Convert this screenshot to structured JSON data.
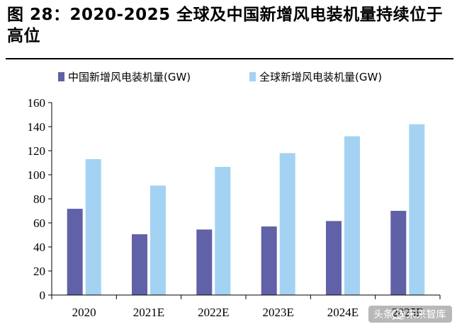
{
  "figure": {
    "title": "图 28：2020-2025 全球及中国新增风电装机量持续位于高位"
  },
  "watermark": {
    "text": "头条 @未来智库",
    "icon": "chat-bubble-icon"
  },
  "colors": {
    "china": "#6161a8",
    "global": "#a3d2f2",
    "axis": "#000000"
  },
  "chart_data": {
    "type": "bar",
    "title": "",
    "xlabel": "",
    "ylabel": "",
    "categories": [
      "2020",
      "2021E",
      "2022E",
      "2023E",
      "2024E",
      "2025E"
    ],
    "series": [
      {
        "name": "中国新增风电装机量(GW)",
        "values": [
          71.7,
          50.5,
          54.5,
          57,
          61.5,
          70
        ]
      },
      {
        "name": "全球新增风电装机量(GW)",
        "values": [
          113,
          91,
          106.5,
          118,
          132,
          142
        ]
      }
    ],
    "ylim": [
      0,
      160
    ],
    "yticks": [
      0,
      20,
      40,
      60,
      80,
      100,
      120,
      140,
      160
    ],
    "grid": false,
    "legend_position": "top-left"
  }
}
